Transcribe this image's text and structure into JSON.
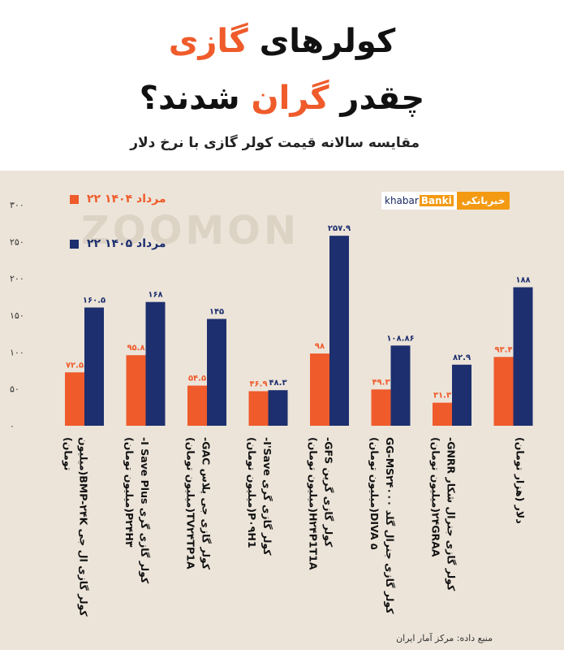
{
  "header": {
    "title_line1_part1": "کولرهای ",
    "title_line1_highlight": "گازی",
    "title_line2_part1": "چقدر ",
    "title_line2_highlight": "گران",
    "title_line2_part2": " شدند؟",
    "subtitle": "مقایسه سالانه قیمت کولر گازی با نرخ دلار"
  },
  "brand": {
    "logo_en_prefix": "khabar",
    "logo_en_highlight": "Banki",
    "logo_fa": "خبربانکی",
    "watermark": "ZOOMON"
  },
  "colors": {
    "series_1404": "#ef5b2b",
    "series_1405": "#1d2f6e",
    "panel_background": "#ece4d9",
    "title_highlight": "#ef5b2b"
  },
  "source": "منبع داده: مرکز آمار ایران",
  "chart_data": {
    "type": "bar",
    "legend_position": "top-left",
    "grid": false,
    "ylim": [
      0,
      300
    ],
    "yticks": [
      0,
      50,
      100,
      150,
      200,
      250,
      300
    ],
    "ytick_labels": [
      "۰",
      "۵۰",
      "۱۰۰",
      "۱۵۰",
      "۲۰۰",
      "۲۵۰",
      "۳۰۰"
    ],
    "categories": [
      [
        "کولر گازی ال جی BMP-۲۴K(میلیون",
        "تومان)"
      ],
      [
        "کولر گازی گری I Save Plus-",
        "P۲۴H۳(میلیون تومان)"
      ],
      [
        "کولر گازی جی پلاس GAC-",
        "TV۲۴TP1A(میلیون تومان)"
      ],
      [
        "کولر گازی گری I'Save-",
        "P۰۹H1(میلیون تومان)"
      ],
      [
        "کولر گازی گرین GFS-",
        "H۲۴P1T1A(میلیون تومان)"
      ],
      [
        "کولر گازی جنرال گلد GG-MS۲۴۰۰۰",
        "DIVA ۵(میلیون تومان)"
      ],
      [
        "کولر گازی جنرال شکار GNRR-",
        "۲۴GRAA(میلیون تومان)"
      ],
      [
        "دلار (هزار تومان)"
      ]
    ],
    "series": [
      {
        "name": "۲۲ مرداد ۱۴۰۴",
        "values": [
          72.5,
          95.8,
          54.5,
          46.9,
          98,
          49.3,
          31.3,
          93.4
        ],
        "labels": [
          "۷۲.۵",
          "۹۵.۸",
          "۵۴.۵",
          "۴۶.۹",
          "۹۸",
          "۴۹.۳",
          "۳۱.۳",
          "۹۳.۴"
        ]
      },
      {
        "name": "۲۲ مرداد ۱۴۰۵",
        "values": [
          160.5,
          168,
          145,
          48.3,
          257.9,
          108.86,
          82.9,
          188
        ],
        "labels": [
          "۱۶۰.۵",
          "۱۶۸",
          "۱۴۵",
          "۴۸.۳",
          "۲۵۷.۹",
          "۱۰۸.۸۶",
          "۸۲.۹",
          "۱۸۸"
        ]
      }
    ]
  }
}
